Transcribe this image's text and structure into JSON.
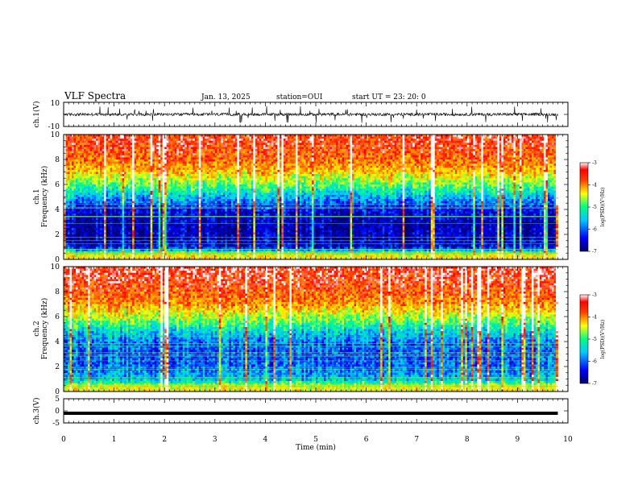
{
  "header": {
    "title": "VLF Spectra",
    "date": "Jan. 13, 2025",
    "station": "station=OUI",
    "start": "start UT = 23: 20: 0"
  },
  "chart_data": [
    {
      "type": "line",
      "panel": "ch1-waveform",
      "ylabel": "ch.1(V)",
      "ylim": [
        -10,
        10
      ],
      "yticks": [
        "10",
        "-10"
      ],
      "x_range_min": [
        0,
        9.8
      ],
      "description_values": {
        "baseline": 0,
        "typical_amplitude": 1.2,
        "spike_amplitude": 5
      }
    },
    {
      "type": "heatmap",
      "panel": "ch1-spectrogram",
      "ylabel": "Frequency (kHz)",
      "ylabel_prefix": "ch.1",
      "ylim": [
        0,
        10
      ],
      "yticks": [
        "0",
        "2",
        "4",
        "6",
        "8",
        "10"
      ],
      "colorbar": {
        "label": "log(PSD)(V²/Hz)",
        "range": [
          -7,
          -3
        ],
        "ticks": [
          "-3",
          "-4",
          "-5",
          "-6",
          "-7"
        ]
      },
      "x_range_min": [
        0,
        9.8
      ],
      "rows_khz": [
        10,
        9,
        8,
        7,
        6,
        5,
        4,
        3,
        2,
        1,
        0.3
      ],
      "mean_log_psd": [
        -3.4,
        -3.5,
        -3.7,
        -4.1,
        -4.8,
        -5.6,
        -6.4,
        -6.7,
        -6.7,
        -6.5,
        -4.3
      ]
    },
    {
      "type": "heatmap",
      "panel": "ch2-spectrogram",
      "ylabel": "Frequency (kHz)",
      "ylabel_prefix": "ch.2",
      "ylim": [
        0,
        10
      ],
      "yticks": [
        "0",
        "2",
        "4",
        "6",
        "8",
        "10"
      ],
      "colorbar": {
        "label": "log(PSD)(V²/Hz)",
        "range": [
          -7,
          -3
        ],
        "ticks": [
          "-3",
          "-4",
          "-5",
          "-6",
          "-7"
        ]
      },
      "x_range_min": [
        0,
        9.8
      ],
      "rows_khz": [
        10,
        9,
        8,
        7,
        6,
        5,
        4,
        3,
        2,
        1,
        0.3
      ],
      "mean_log_psd": [
        -3.3,
        -3.4,
        -3.6,
        -3.9,
        -4.5,
        -5.3,
        -5.9,
        -6.1,
        -6.0,
        -5.6,
        -4.4
      ]
    },
    {
      "type": "line",
      "panel": "ch3-waveform",
      "ylabel": "ch.3(V)",
      "ylim": [
        -5,
        5
      ],
      "yticks": [
        "5",
        "0",
        "-5"
      ],
      "x_range_min": [
        0,
        9.8
      ],
      "values": [
        -1,
        -1
      ]
    }
  ],
  "xaxis": {
    "label": "Time (min)",
    "range": [
      0,
      10
    ],
    "ticks": [
      "0",
      "1",
      "2",
      "3",
      "4",
      "5",
      "6",
      "7",
      "8",
      "9",
      "10"
    ]
  },
  "colors": {
    "colormap": [
      "#000070",
      "#0000ff",
      "#00c8ff",
      "#00ff80",
      "#ffff00",
      "#ff8000",
      "#ff0000",
      "#ffffff"
    ]
  }
}
